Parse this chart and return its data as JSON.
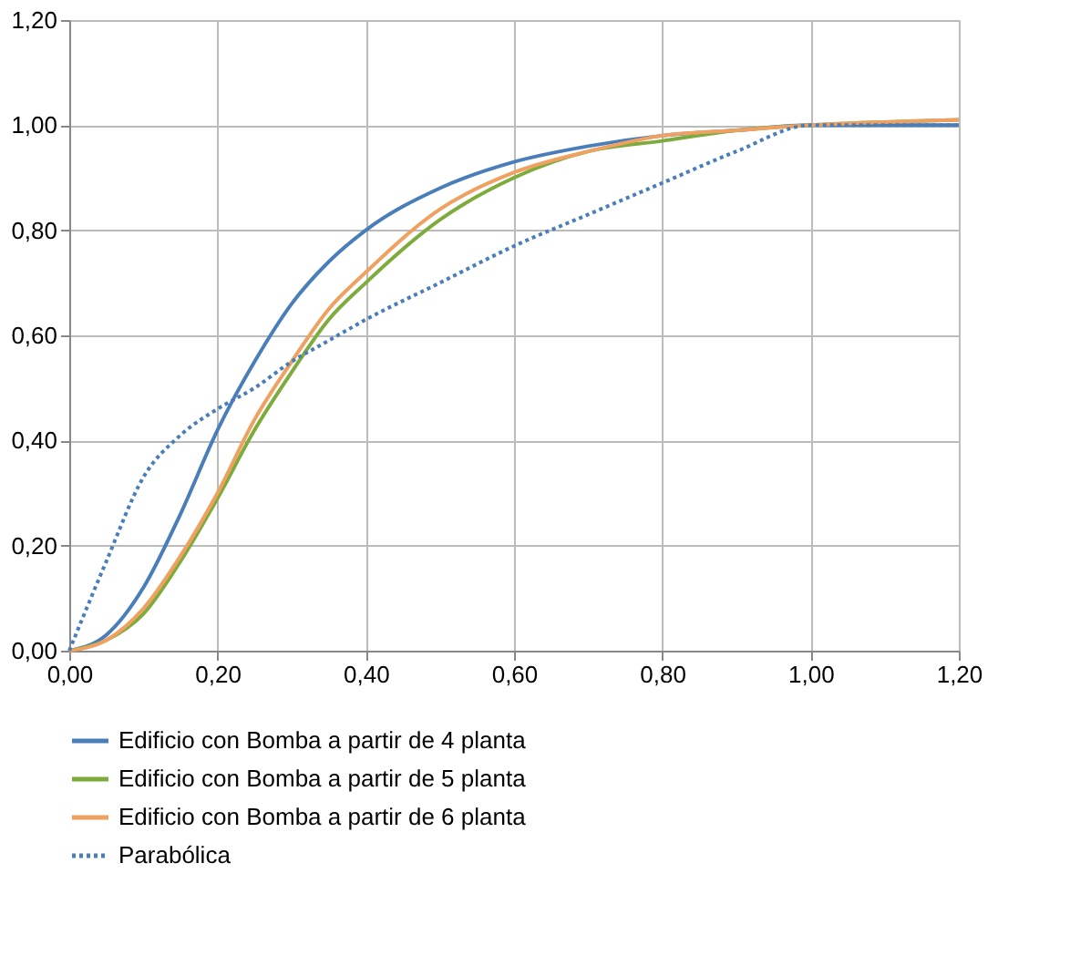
{
  "chart_data": {
    "type": "line",
    "legend": "bottom",
    "grid": true,
    "marker": "none",
    "xlim": [
      0,
      1.2
    ],
    "ylim": [
      0,
      1.2
    ],
    "xticks": [
      {
        "value": 0,
        "label": "0,00"
      },
      {
        "value": 0.2,
        "label": "0,20"
      },
      {
        "value": 0.4,
        "label": "0,40"
      },
      {
        "value": 0.6,
        "label": "0,60"
      },
      {
        "value": 0.8,
        "label": "0,80"
      },
      {
        "value": 1.0,
        "label": "1,00"
      },
      {
        "value": 1.2,
        "label": "1,20"
      }
    ],
    "yticks": [
      {
        "value": 0,
        "label": "0,00"
      },
      {
        "value": 0.2,
        "label": "0,20"
      },
      {
        "value": 0.4,
        "label": "0,40"
      },
      {
        "value": 0.6,
        "label": "0,60"
      },
      {
        "value": 0.8,
        "label": "0,80"
      },
      {
        "value": 1.0,
        "label": "1,00"
      },
      {
        "value": 1.2,
        "label": "1,20"
      }
    ],
    "x": [
      0,
      0.05,
      0.1,
      0.15,
      0.2,
      0.25,
      0.3,
      0.35,
      0.4,
      0.5,
      0.6,
      0.7,
      0.8,
      0.9,
      1.0,
      1.2
    ],
    "series": [
      {
        "name": "Edificio con Bomba a partir de 4 planta",
        "color": "#4a7ebb",
        "line_style": "solid",
        "values": [
          0,
          0.03,
          0.12,
          0.26,
          0.42,
          0.55,
          0.66,
          0.74,
          0.8,
          0.88,
          0.93,
          0.96,
          0.98,
          0.99,
          1.0,
          1.0
        ]
      },
      {
        "name": "Edificio con Bomba a partir de 5 planta",
        "color": "#7dab3c",
        "line_style": "solid",
        "values": [
          0,
          0.02,
          0.07,
          0.17,
          0.29,
          0.42,
          0.53,
          0.63,
          0.7,
          0.82,
          0.9,
          0.95,
          0.97,
          0.99,
          1.0,
          1.01
        ]
      },
      {
        "name": "Edificio con Bomba a partir de 6 planta",
        "color": "#f0a060",
        "line_style": "solid",
        "values": [
          0,
          0.02,
          0.08,
          0.18,
          0.3,
          0.44,
          0.55,
          0.65,
          0.72,
          0.84,
          0.91,
          0.95,
          0.98,
          0.99,
          1.0,
          1.01
        ]
      },
      {
        "name": "Parabólica",
        "color": "#4a7ebb",
        "line_style": "dotted",
        "values": [
          0,
          0.17,
          0.33,
          0.41,
          0.46,
          0.5,
          0.55,
          0.59,
          0.63,
          0.7,
          0.77,
          0.83,
          0.89,
          0.95,
          1.0,
          1.0
        ]
      }
    ]
  }
}
